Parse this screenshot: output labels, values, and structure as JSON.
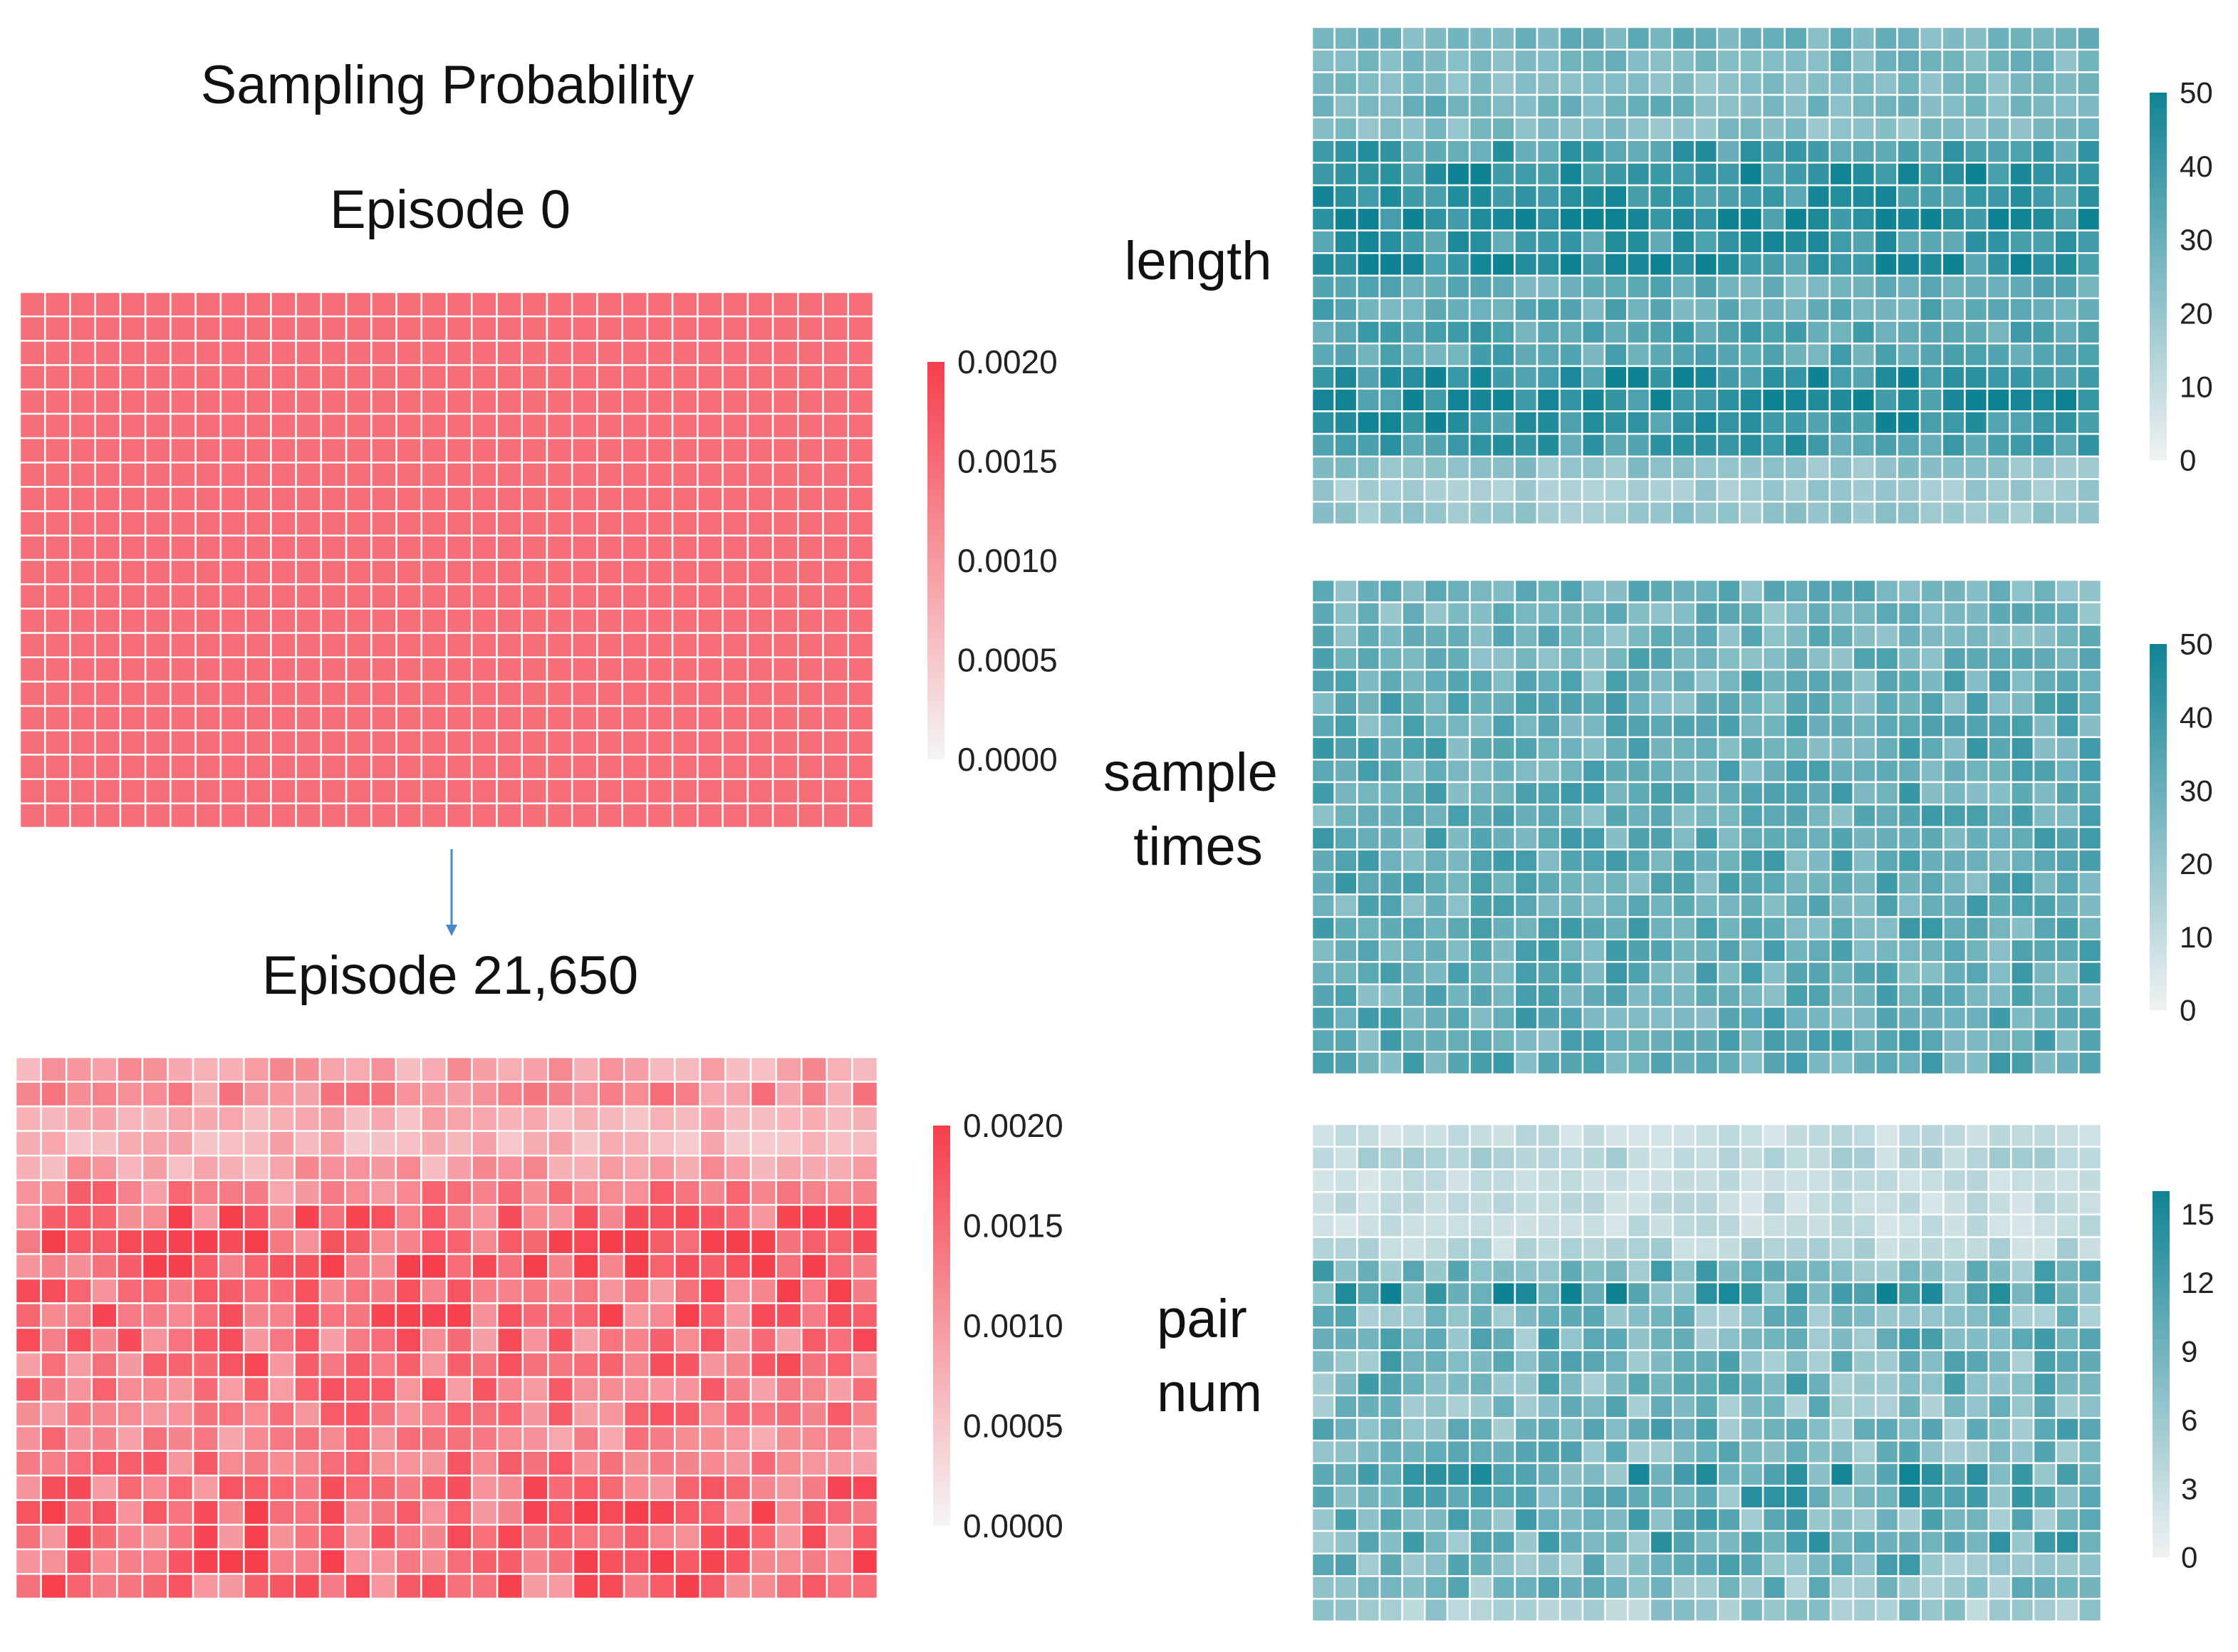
{
  "figure": {
    "title": "Sampling Probability",
    "arrow_color": "#4a86c8"
  },
  "colors": {
    "red_scale": [
      "#f5f5f5",
      "#f73e4c"
    ],
    "teal_scale": [
      "#f0f2f2",
      "#0f8394"
    ],
    "cell_border": "#ffffff"
  },
  "chart_data": [
    {
      "id": "episode0",
      "type": "heatmap",
      "title": "Episode 0",
      "rows": 22,
      "cols": 34,
      "value_range": [
        0,
        0.002
      ],
      "colorbar_ticks": [
        "0.0020",
        "0.0015",
        "0.0010",
        "0.0005",
        "0.0000"
      ],
      "palette": "red",
      "row_values": [
        0.00148,
        0.00148,
        0.00148,
        0.00148,
        0.00148,
        0.00148,
        0.00148,
        0.00148,
        0.00148,
        0.00148,
        0.00148,
        0.00148,
        0.00148,
        0.00148,
        0.00148,
        0.00148,
        0.00148,
        0.00148,
        0.00148,
        0.00148,
        0.00148,
        0.00148
      ]
    },
    {
      "id": "episode21650",
      "type": "heatmap",
      "title": "Episode 21,650",
      "rows": 22,
      "cols": 34,
      "value_range": [
        0,
        0.002
      ],
      "colorbar_ticks": [
        "0.0020",
        "0.0015",
        "0.0010",
        "0.0005",
        "0.0000"
      ],
      "palette": "red",
      "row_values": [
        0.0009,
        0.00115,
        0.0008,
        0.0007,
        0.0009,
        0.00125,
        0.00158,
        0.00165,
        0.00162,
        0.00152,
        0.00148,
        0.00142,
        0.00143,
        0.00135,
        0.0013,
        0.0012,
        0.00132,
        0.00145,
        0.00155,
        0.0015,
        0.00158,
        0.0015
      ]
    },
    {
      "id": "length",
      "type": "heatmap",
      "title": "length",
      "rows": 22,
      "cols": 35,
      "value_range": [
        0,
        50
      ],
      "colorbar_ticks": [
        "50",
        "40",
        "30",
        "20",
        "10",
        "0"
      ],
      "palette": "teal",
      "row_values": [
        28,
        26,
        24,
        28,
        24,
        38,
        44,
        41,
        45,
        40,
        43,
        30,
        32,
        35,
        33,
        44,
        45,
        42,
        38,
        22,
        18,
        20
      ]
    },
    {
      "id": "sample_times",
      "type": "heatmap",
      "title": "sample times",
      "rows": 22,
      "cols": 35,
      "value_range": [
        0,
        50
      ],
      "colorbar_ticks": [
        "50",
        "40",
        "30",
        "20",
        "10",
        "0"
      ],
      "palette": "teal",
      "row_values": [
        28,
        27,
        28,
        29,
        30,
        31,
        31,
        32,
        31,
        32,
        31,
        32,
        31,
        32,
        31,
        32,
        31,
        32,
        31,
        32,
        31,
        32
      ]
    },
    {
      "id": "pair_num",
      "type": "heatmap",
      "title": "pair num",
      "rows": 22,
      "cols": 35,
      "value_range": [
        0,
        16
      ],
      "colorbar_ticks": [
        "15",
        "12",
        "9",
        "6",
        "3",
        "0"
      ],
      "palette": "teal",
      "row_values": [
        3,
        4,
        3,
        3,
        3,
        4,
        9,
        12,
        8,
        9,
        9,
        9,
        8,
        9,
        8,
        11,
        10,
        9,
        10,
        9,
        8,
        6
      ]
    }
  ]
}
